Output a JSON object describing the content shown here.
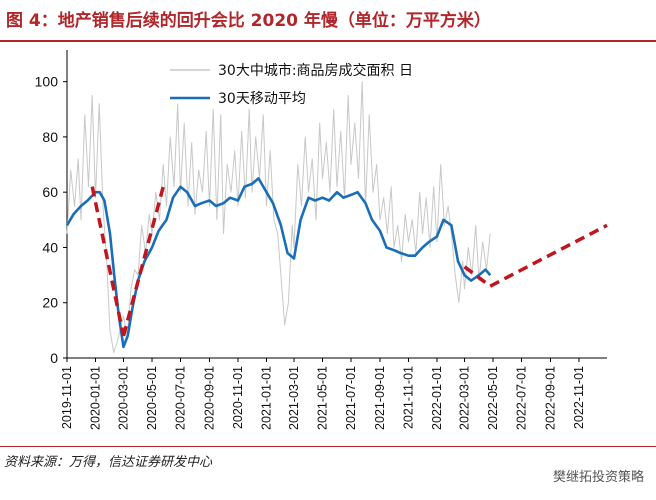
{
  "figure": {
    "title": "图 4：地产销售后续的回升会比 2020 年慢（单位：万平方米）",
    "source": "资料来源：万得，信达证券研发中心",
    "watermark": "樊继拓投资策略"
  },
  "chart_data": {
    "type": "line",
    "x_ticks": [
      "2019-11-01",
      "2020-01-01",
      "2020-03-01",
      "2020-05-01",
      "2020-07-01",
      "2020-09-01",
      "2020-11-01",
      "2021-01-01",
      "2021-03-01",
      "2021-05-01",
      "2021-07-01",
      "2021-09-01",
      "2021-11-01",
      "2022-01-01",
      "2022-03-01",
      "2022-05-01",
      "2022-07-01",
      "2022-09-01",
      "2022-11-01"
    ],
    "y_ticks": [
      "0",
      "20",
      "40",
      "60",
      "80",
      "100"
    ],
    "ylim": [
      0,
      110
    ],
    "grid": false,
    "legend_position": "top-left",
    "series": [
      {
        "name": "30大中城市:商品房成交面积  日",
        "style": "thin-gray",
        "color": "#c8c8c8",
        "x": [
          "2019-11-01",
          "2019-11-09",
          "2019-11-17",
          "2019-11-25",
          "2019-12-01",
          "2019-12-09",
          "2019-12-17",
          "2019-12-25",
          "2020-01-01",
          "2020-01-09",
          "2020-01-17",
          "2020-01-25",
          "2020-02-01",
          "2020-02-09",
          "2020-02-17",
          "2020-02-25",
          "2020-03-01",
          "2020-03-09",
          "2020-03-17",
          "2020-03-25",
          "2020-04-01",
          "2020-04-09",
          "2020-04-17",
          "2020-04-25",
          "2020-05-01",
          "2020-05-09",
          "2020-05-17",
          "2020-05-25",
          "2020-06-01",
          "2020-06-09",
          "2020-06-17",
          "2020-06-25",
          "2020-07-01",
          "2020-07-09",
          "2020-07-17",
          "2020-07-25",
          "2020-08-01",
          "2020-08-09",
          "2020-08-17",
          "2020-08-25",
          "2020-09-01",
          "2020-09-09",
          "2020-09-17",
          "2020-09-25",
          "2020-10-01",
          "2020-10-09",
          "2020-10-17",
          "2020-10-25",
          "2020-11-01",
          "2020-11-09",
          "2020-11-17",
          "2020-11-25",
          "2020-12-01",
          "2020-12-09",
          "2020-12-17",
          "2020-12-25",
          "2021-01-01",
          "2021-01-09",
          "2021-01-17",
          "2021-01-25",
          "2021-02-01",
          "2021-02-09",
          "2021-02-17",
          "2021-02-25",
          "2021-03-01",
          "2021-03-09",
          "2021-03-17",
          "2021-03-25",
          "2021-04-01",
          "2021-04-09",
          "2021-04-17",
          "2021-04-25",
          "2021-05-01",
          "2021-05-09",
          "2021-05-17",
          "2021-05-25",
          "2021-06-01",
          "2021-06-09",
          "2021-06-17",
          "2021-06-25",
          "2021-07-01",
          "2021-07-09",
          "2021-07-17",
          "2021-07-25",
          "2021-08-01",
          "2021-08-09",
          "2021-08-17",
          "2021-08-25",
          "2021-09-01",
          "2021-09-09",
          "2021-09-17",
          "2021-09-25",
          "2021-10-01",
          "2021-10-09",
          "2021-10-17",
          "2021-10-25",
          "2021-11-01",
          "2021-11-09",
          "2021-11-17",
          "2021-11-25",
          "2021-12-01",
          "2021-12-09",
          "2021-12-17",
          "2021-12-25",
          "2022-01-01",
          "2022-01-09",
          "2022-01-17",
          "2022-01-25",
          "2022-02-01",
          "2022-02-09",
          "2022-02-17",
          "2022-02-25",
          "2022-03-01",
          "2022-03-09",
          "2022-03-17",
          "2022-03-25",
          "2022-04-01",
          "2022-04-09",
          "2022-04-17",
          "2022-04-25"
        ],
        "values": [
          45,
          68,
          55,
          72,
          50,
          88,
          62,
          95,
          58,
          92,
          55,
          35,
          10,
          2,
          6,
          12,
          15,
          8,
          25,
          32,
          30,
          48,
          38,
          52,
          45,
          60,
          50,
          70,
          55,
          80,
          62,
          92,
          60,
          85,
          55,
          78,
          52,
          68,
          60,
          82,
          55,
          90,
          50,
          88,
          45,
          70,
          60,
          75,
          55,
          82,
          58,
          90,
          60,
          80,
          65,
          88,
          55,
          75,
          50,
          45,
          30,
          12,
          20,
          48,
          40,
          70,
          55,
          80,
          60,
          72,
          50,
          85,
          65,
          78,
          60,
          90,
          62,
          82,
          58,
          95,
          70,
          85,
          65,
          100,
          55,
          88,
          60,
          70,
          50,
          58,
          45,
          62,
          40,
          48,
          35,
          52,
          42,
          50,
          38,
          60,
          45,
          58,
          40,
          62,
          42,
          70,
          48,
          55,
          45,
          30,
          20,
          35,
          25,
          40,
          30,
          48,
          28,
          42,
          32,
          45
        ]
      },
      {
        "name": "30天移动平均",
        "style": "thick-blue",
        "color": "#1a6eb8",
        "x": [
          "2019-11-01",
          "2019-11-15",
          "2019-12-01",
          "2019-12-15",
          "2020-01-01",
          "2020-01-10",
          "2020-01-20",
          "2020-02-01",
          "2020-02-10",
          "2020-02-20",
          "2020-03-01",
          "2020-03-10",
          "2020-03-20",
          "2020-04-01",
          "2020-04-15",
          "2020-05-01",
          "2020-05-15",
          "2020-06-01",
          "2020-06-15",
          "2020-07-01",
          "2020-07-15",
          "2020-08-01",
          "2020-08-15",
          "2020-09-01",
          "2020-09-15",
          "2020-10-01",
          "2020-10-15",
          "2020-11-01",
          "2020-11-15",
          "2020-12-01",
          "2020-12-15",
          "2021-01-01",
          "2021-01-15",
          "2021-02-01",
          "2021-02-15",
          "2021-03-01",
          "2021-03-15",
          "2021-04-01",
          "2021-04-15",
          "2021-05-01",
          "2021-05-15",
          "2021-06-01",
          "2021-06-15",
          "2021-07-01",
          "2021-07-15",
          "2021-08-01",
          "2021-08-15",
          "2021-09-01",
          "2021-09-15",
          "2021-10-01",
          "2021-10-15",
          "2021-11-01",
          "2021-11-15",
          "2021-12-01",
          "2021-12-15",
          "2022-01-01",
          "2022-01-15",
          "2022-02-01",
          "2022-02-15",
          "2022-03-01",
          "2022-03-15",
          "2022-04-01",
          "2022-04-15",
          "2022-04-25"
        ],
        "values": [
          48,
          52,
          55,
          57,
          60,
          60,
          57,
          45,
          30,
          15,
          4,
          8,
          18,
          28,
          35,
          40,
          46,
          50,
          58,
          62,
          60,
          55,
          56,
          57,
          55,
          56,
          58,
          57,
          62,
          63,
          65,
          60,
          56,
          48,
          38,
          36,
          50,
          58,
          57,
          58,
          57,
          60,
          58,
          59,
          60,
          56,
          50,
          46,
          40,
          39,
          38,
          37,
          37,
          40,
          42,
          44,
          50,
          48,
          35,
          30,
          28,
          30,
          32,
          30
        ]
      }
    ],
    "trend_lines": [
      {
        "x": [
          "2019-12-25",
          "2020-03-01"
        ],
        "values": [
          62,
          8
        ]
      },
      {
        "x": [
          "2020-03-01",
          "2020-05-25"
        ],
        "values": [
          8,
          62
        ]
      },
      {
        "x": [
          "2022-03-01",
          "2022-04-25"
        ],
        "values": [
          33,
          26
        ]
      },
      {
        "x": [
          "2022-04-25",
          "2022-12-31"
        ],
        "values": [
          26,
          48
        ]
      }
    ]
  }
}
